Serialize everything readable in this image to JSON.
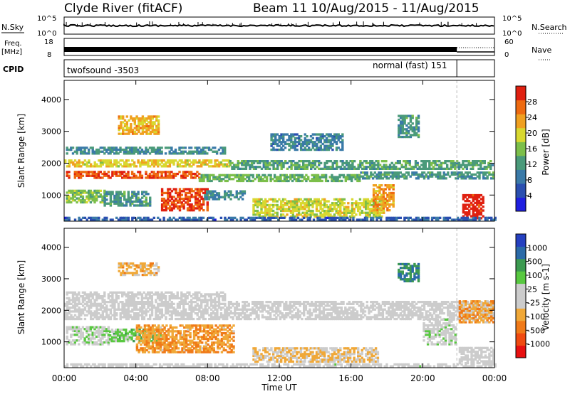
{
  "header": {
    "station": "Clyde River (fitACF)",
    "beam_period": "Beam 11  10/Aug/2015 - 11/Aug/2015"
  },
  "strips": {
    "nsky_label": "N.Sky",
    "nsearch_label": "N.Search",
    "freq_label": "Freq.",
    "freq_unit": "[MHz]",
    "nave_label": "Nave",
    "cpid_label": "CPID",
    "nsky_ticks": [
      "10^5",
      "10^0"
    ],
    "nsearch_ticks": [
      "10^5",
      "10^0"
    ],
    "freq_ticks": [
      "18",
      "8"
    ],
    "nave_ticks": [
      "60",
      "0"
    ],
    "cpid_modes": [
      "twofsound -3503",
      "normal (fast) 151"
    ],
    "mode_change_time_h": 21.9
  },
  "chart_data": [
    {
      "type": "heatmap",
      "name": "power-panel",
      "ylabel": "Slant Range [km]",
      "y_ticks": [
        1000,
        2000,
        3000,
        4000
      ],
      "ylim": [
        180,
        4600
      ],
      "x_ticks": [
        "00:00",
        "04:00",
        "08:00",
        "12:00",
        "16:00",
        "20:00",
        "00:00"
      ],
      "xlim_hours": [
        0,
        24
      ],
      "colorbar": {
        "label": "Power [dB]",
        "tick_labels": [
          "4",
          "8",
          "12",
          "16",
          "20",
          "24",
          "28"
        ],
        "range": [
          0,
          30
        ],
        "colors": [
          "#1f1fe0",
          "#2a4fb0",
          "#3a7aa8",
          "#4a9a7a",
          "#7cbf4a",
          "#d8d830",
          "#f0a020",
          "#ee6a10",
          "#e02010"
        ]
      },
      "regions": [
        {
          "t": [
            0.0,
            9.2
          ],
          "r": [
            1880,
            2120
          ],
          "v": 19
        },
        {
          "t": [
            9.2,
            23.9
          ],
          "r": [
            1800,
            2080
          ],
          "v": 12
        },
        {
          "t": [
            0.1,
            7.5
          ],
          "r": [
            1520,
            1760
          ],
          "v": 26
        },
        {
          "t": [
            7.5,
            16.5
          ],
          "r": [
            1420,
            1620
          ],
          "v": 14
        },
        {
          "t": [
            16.5,
            23.9
          ],
          "r": [
            1500,
            1700
          ],
          "v": 11
        },
        {
          "t": [
            0.1,
            9.0
          ],
          "r": [
            2280,
            2520
          ],
          "v": 10
        },
        {
          "t": [
            11.5,
            15.5
          ],
          "r": [
            2400,
            2900
          ],
          "v": 9
        },
        {
          "t": [
            3.0,
            5.3
          ],
          "r": [
            2900,
            3500
          ],
          "v": 21
        },
        {
          "t": [
            0.1,
            2.2
          ],
          "r": [
            750,
            1150
          ],
          "v": 15
        },
        {
          "t": [
            2.2,
            4.8
          ],
          "r": [
            650,
            1100
          ],
          "v": 11
        },
        {
          "t": [
            5.4,
            8.0
          ],
          "r": [
            500,
            1200
          ],
          "v": 27
        },
        {
          "t": [
            7.8,
            10.0
          ],
          "r": [
            850,
            1150
          ],
          "v": 10
        },
        {
          "t": [
            10.5,
            17.8
          ],
          "r": [
            300,
            850
          ],
          "v": 18
        },
        {
          "t": [
            17.2,
            18.3
          ],
          "r": [
            500,
            1300
          ],
          "v": 22
        },
        {
          "t": [
            18.6,
            19.8
          ],
          "r": [
            2800,
            3500
          ],
          "v": 11
        },
        {
          "t": [
            22.2,
            23.3
          ],
          "r": [
            250,
            1000
          ],
          "v": 29
        },
        {
          "t": [
            0.0,
            24.0
          ],
          "r": [
            200,
            320
          ],
          "v": 6
        }
      ]
    },
    {
      "type": "heatmap",
      "name": "velocity-panel",
      "xlabel": "Time UT",
      "ylabel": "Slant Range [km]",
      "y_ticks": [
        1000,
        2000,
        3000,
        4000
      ],
      "ylim": [
        180,
        4600
      ],
      "x_ticks": [
        "00:00",
        "04:00",
        "08:00",
        "12:00",
        "16:00",
        "20:00",
        "00:00"
      ],
      "xlim_hours": [
        0,
        24
      ],
      "colorbar": {
        "label": "Velocity [m s-1]",
        "tick_labels": [
          "1000",
          "500",
          "100",
          "25",
          "-25",
          "-100",
          "-500",
          "-1000"
        ],
        "range": [
          -1200,
          1200
        ],
        "colors": [
          "#e81010",
          "#f04a10",
          "#f07a18",
          "#f0a838",
          "#cccccc",
          "#cccccc",
          "#58c840",
          "#3c9a50",
          "#2a6aa8",
          "#2540c0"
        ]
      },
      "regions": [
        {
          "t": [
            0.0,
            23.9
          ],
          "r": [
            1700,
            2250
          ],
          "v": 0
        },
        {
          "t": [
            0.1,
            9.0
          ],
          "r": [
            2300,
            2600
          ],
          "v": 0
        },
        {
          "t": [
            0.1,
            2.5
          ],
          "r": [
            900,
            1450
          ],
          "v": 120
        },
        {
          "t": [
            2.5,
            5.4
          ],
          "r": [
            1000,
            1400
          ],
          "v": 300
        },
        {
          "t": [
            4.0,
            9.5
          ],
          "r": [
            650,
            1500
          ],
          "v": -450
        },
        {
          "t": [
            10.5,
            17.5
          ],
          "r": [
            350,
            800
          ],
          "v": -250
        },
        {
          "t": [
            3.0,
            5.3
          ],
          "r": [
            3100,
            3500
          ],
          "v": -300
        },
        {
          "t": [
            18.6,
            19.8
          ],
          "r": [
            2900,
            3500
          ],
          "v": 700
        },
        {
          "t": [
            20.0,
            21.8
          ],
          "r": [
            900,
            1700
          ],
          "v": 80
        },
        {
          "t": [
            22.0,
            23.9
          ],
          "r": [
            1600,
            2300
          ],
          "v": -400
        },
        {
          "t": [
            22.0,
            23.9
          ],
          "r": [
            300,
            800
          ],
          "v": 0
        },
        {
          "t": [
            0.0,
            24.0
          ],
          "r": [
            200,
            320
          ],
          "v": 30
        }
      ]
    }
  ]
}
